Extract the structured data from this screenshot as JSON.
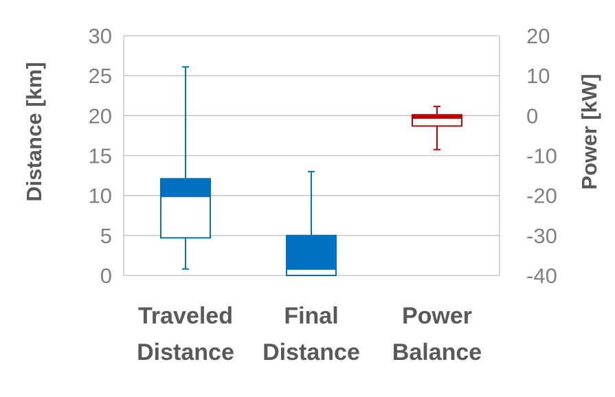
{
  "chart_data": {
    "type": "box",
    "title": "",
    "categories": [
      {
        "line1": "Traveled",
        "line2": "Distance"
      },
      {
        "line1": "Final",
        "line2": "Distance"
      },
      {
        "line1": "Power",
        "line2": "Balance"
      }
    ],
    "left_axis": {
      "label": "Distance [km]",
      "ylim": [
        0,
        30
      ],
      "ticks": [
        0,
        5,
        10,
        15,
        20,
        25,
        30
      ]
    },
    "right_axis": {
      "label": "Power [kW]",
      "ylim": [
        -40,
        20
      ],
      "ticks": [
        -40,
        -30,
        -20,
        -10,
        0,
        10,
        20
      ]
    },
    "series": [
      {
        "category": "Traveled Distance",
        "axis": "left",
        "color": "#0070c0",
        "min": 0.8,
        "q1": 4.7,
        "median": 9.9,
        "q3": 12.1,
        "max": 26.1
      },
      {
        "category": "Final Distance",
        "axis": "left",
        "color": "#0070c0",
        "min": 0.0,
        "q1": 0.0,
        "median": 0.8,
        "q3": 5.0,
        "max": 13.0
      },
      {
        "category": "Power Balance",
        "axis": "right",
        "color": "#c00000",
        "min": -8.5,
        "q1": -2.6,
        "median": -0.6,
        "q3": 0.2,
        "max": 2.3
      }
    ],
    "grid": true,
    "legend": "none"
  }
}
